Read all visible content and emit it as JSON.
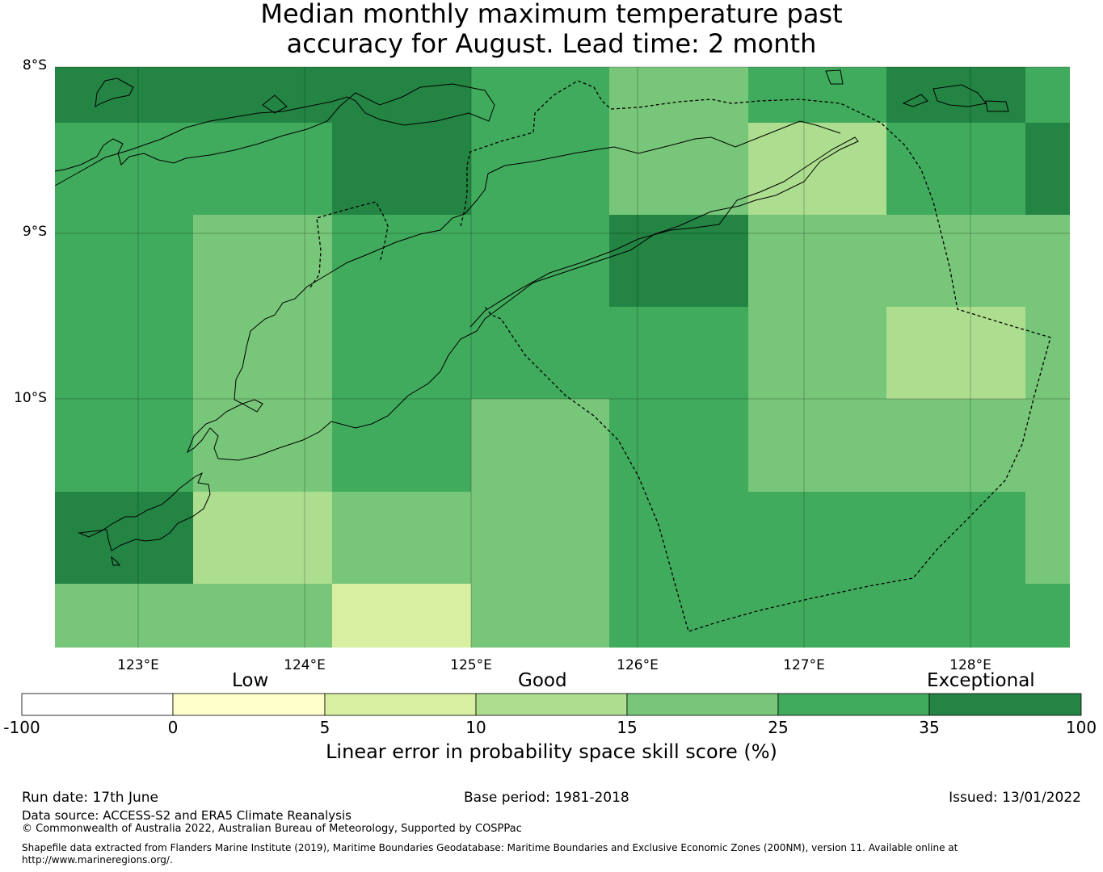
{
  "title": {
    "line1": "Median monthly maximum temperature past",
    "line2": "accuracy for August. Lead time: 2 month"
  },
  "map": {
    "lat_labels": [
      "8°S",
      "9°S",
      "10°S"
    ],
    "lon_labels": [
      "123°E",
      "124°E",
      "125°E",
      "126°E",
      "127°E",
      "128°E"
    ],
    "grid": [
      [
        35,
        35,
        35,
        25,
        15,
        25,
        35,
        25
      ],
      [
        25,
        25,
        35,
        25,
        15,
        10,
        25,
        35
      ],
      [
        25,
        15,
        25,
        25,
        35,
        15,
        15,
        15
      ],
      [
        25,
        15,
        25,
        25,
        25,
        15,
        10,
        15
      ],
      [
        25,
        15,
        25,
        15,
        25,
        15,
        15,
        15
      ],
      [
        35,
        10,
        15,
        15,
        25,
        25,
        25,
        15
      ],
      [
        15,
        15,
        5,
        15,
        25,
        25,
        25,
        25
      ]
    ]
  },
  "colorbar": {
    "categories": [
      "Low",
      "Good",
      "Exceptional"
    ],
    "ticks": [
      "-100",
      "0",
      "5",
      "10",
      "15",
      "25",
      "35",
      "100"
    ],
    "colors": [
      "#ffffff",
      "#ffffcc",
      "#d9f0a3",
      "#addd8e",
      "#78c679",
      "#41ab5d",
      "#238443"
    ],
    "label": "Linear error in probability space skill score (%)"
  },
  "footer": {
    "run_date": "Run date: 17th June",
    "base_period": "Base period: 1981-2018",
    "issued": "Issued: 13/01/2022",
    "data_source": "Data source: ACCESS-S2 and ERA5 Climate Reanalysis",
    "copyright": "© Commonwealth of Australia 2022, Australian Bureau of Meteorology, Supported by COSPPac",
    "shapefile_line1": "Shapefile data extracted from Flanders Marine Institute (2019), Maritime Boundaries Geodatabase: Maritime Boundaries and Exclusive Economic Zones (200NM), version 11. Available online at",
    "shapefile_line2": "http://www.marineregions.org/."
  }
}
